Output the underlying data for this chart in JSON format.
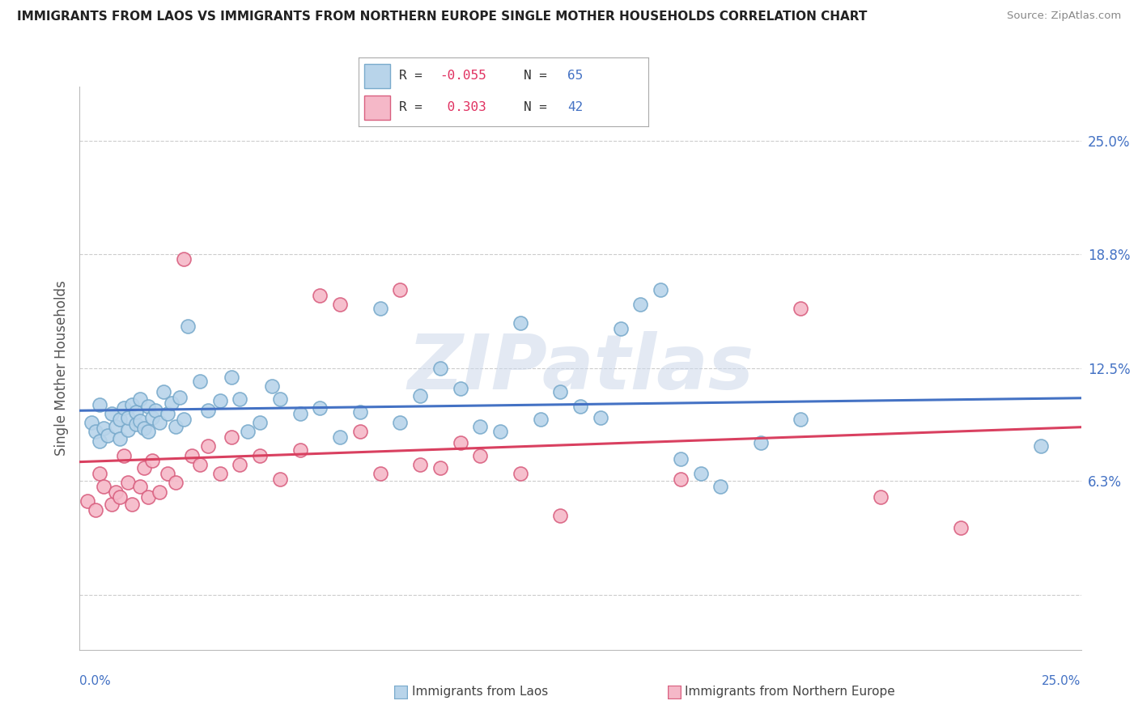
{
  "title": "IMMIGRANTS FROM LAOS VS IMMIGRANTS FROM NORTHERN EUROPE SINGLE MOTHER HOUSEHOLDS CORRELATION CHART",
  "source": "Source: ZipAtlas.com",
  "watermark": "ZIPatlas",
  "xmin": 0.0,
  "xmax": 25.0,
  "ymin": -3.0,
  "ymax": 28.0,
  "yticks": [
    0.0,
    6.3,
    12.5,
    18.8,
    25.0
  ],
  "ytick_labels": [
    "",
    "6.3%",
    "12.5%",
    "18.8%",
    "25.0%"
  ],
  "laos_color": "#b8d4ea",
  "laos_edge": "#7aabcc",
  "ne_color": "#f5b8c8",
  "ne_edge": "#d96080",
  "laos_trend_color": "#4472c4",
  "ne_trend_color": "#d94060",
  "laos_label": "Immigrants from Laos",
  "ne_label": "Immigrants from Northern Europe",
  "legend_line1": "R = -0.055  N = 65",
  "legend_line2": "R =  0.303  N = 42",
  "laos_points": [
    [
      0.3,
      9.5
    ],
    [
      0.4,
      9.0
    ],
    [
      0.5,
      8.5
    ],
    [
      0.5,
      10.5
    ],
    [
      0.6,
      9.2
    ],
    [
      0.7,
      8.8
    ],
    [
      0.8,
      10.0
    ],
    [
      0.9,
      9.3
    ],
    [
      1.0,
      9.7
    ],
    [
      1.0,
      8.6
    ],
    [
      1.1,
      10.3
    ],
    [
      1.2,
      9.1
    ],
    [
      1.2,
      9.8
    ],
    [
      1.3,
      10.5
    ],
    [
      1.4,
      9.4
    ],
    [
      1.4,
      10.1
    ],
    [
      1.5,
      9.6
    ],
    [
      1.5,
      10.8
    ],
    [
      1.6,
      9.2
    ],
    [
      1.7,
      10.4
    ],
    [
      1.7,
      9.0
    ],
    [
      1.8,
      9.8
    ],
    [
      1.9,
      10.2
    ],
    [
      2.0,
      9.5
    ],
    [
      2.1,
      11.2
    ],
    [
      2.2,
      10.0
    ],
    [
      2.3,
      10.6
    ],
    [
      2.4,
      9.3
    ],
    [
      2.5,
      10.9
    ],
    [
      2.6,
      9.7
    ],
    [
      2.7,
      14.8
    ],
    [
      3.0,
      11.8
    ],
    [
      3.2,
      10.2
    ],
    [
      3.5,
      10.7
    ],
    [
      3.8,
      12.0
    ],
    [
      4.0,
      10.8
    ],
    [
      4.2,
      9.0
    ],
    [
      4.5,
      9.5
    ],
    [
      4.8,
      11.5
    ],
    [
      5.0,
      10.8
    ],
    [
      5.5,
      10.0
    ],
    [
      6.0,
      10.3
    ],
    [
      6.5,
      8.7
    ],
    [
      7.0,
      10.1
    ],
    [
      7.5,
      15.8
    ],
    [
      8.0,
      9.5
    ],
    [
      8.5,
      11.0
    ],
    [
      9.0,
      12.5
    ],
    [
      9.5,
      11.4
    ],
    [
      10.0,
      9.3
    ],
    [
      10.5,
      9.0
    ],
    [
      11.0,
      15.0
    ],
    [
      11.5,
      9.7
    ],
    [
      12.0,
      11.2
    ],
    [
      12.5,
      10.4
    ],
    [
      13.0,
      9.8
    ],
    [
      13.5,
      14.7
    ],
    [
      14.0,
      16.0
    ],
    [
      14.5,
      16.8
    ],
    [
      15.0,
      7.5
    ],
    [
      15.5,
      6.7
    ],
    [
      16.0,
      6.0
    ],
    [
      17.0,
      8.4
    ],
    [
      18.0,
      9.7
    ],
    [
      24.0,
      8.2
    ]
  ],
  "ne_points": [
    [
      0.2,
      5.2
    ],
    [
      0.4,
      4.7
    ],
    [
      0.5,
      6.7
    ],
    [
      0.6,
      6.0
    ],
    [
      0.8,
      5.0
    ],
    [
      0.9,
      5.7
    ],
    [
      1.0,
      5.4
    ],
    [
      1.1,
      7.7
    ],
    [
      1.2,
      6.2
    ],
    [
      1.3,
      5.0
    ],
    [
      1.5,
      6.0
    ],
    [
      1.6,
      7.0
    ],
    [
      1.7,
      5.4
    ],
    [
      1.8,
      7.4
    ],
    [
      2.0,
      5.7
    ],
    [
      2.2,
      6.7
    ],
    [
      2.4,
      6.2
    ],
    [
      2.6,
      18.5
    ],
    [
      2.8,
      7.7
    ],
    [
      3.0,
      7.2
    ],
    [
      3.2,
      8.2
    ],
    [
      3.5,
      6.7
    ],
    [
      3.8,
      8.7
    ],
    [
      4.0,
      7.2
    ],
    [
      4.5,
      7.7
    ],
    [
      5.0,
      6.4
    ],
    [
      5.5,
      8.0
    ],
    [
      6.0,
      16.5
    ],
    [
      6.5,
      16.0
    ],
    [
      7.0,
      9.0
    ],
    [
      7.5,
      6.7
    ],
    [
      8.0,
      16.8
    ],
    [
      8.5,
      7.2
    ],
    [
      9.0,
      7.0
    ],
    [
      9.5,
      8.4
    ],
    [
      10.0,
      7.7
    ],
    [
      11.0,
      6.7
    ],
    [
      12.0,
      4.4
    ],
    [
      15.0,
      6.4
    ],
    [
      18.0,
      15.8
    ],
    [
      20.0,
      5.4
    ],
    [
      22.0,
      3.7
    ]
  ]
}
